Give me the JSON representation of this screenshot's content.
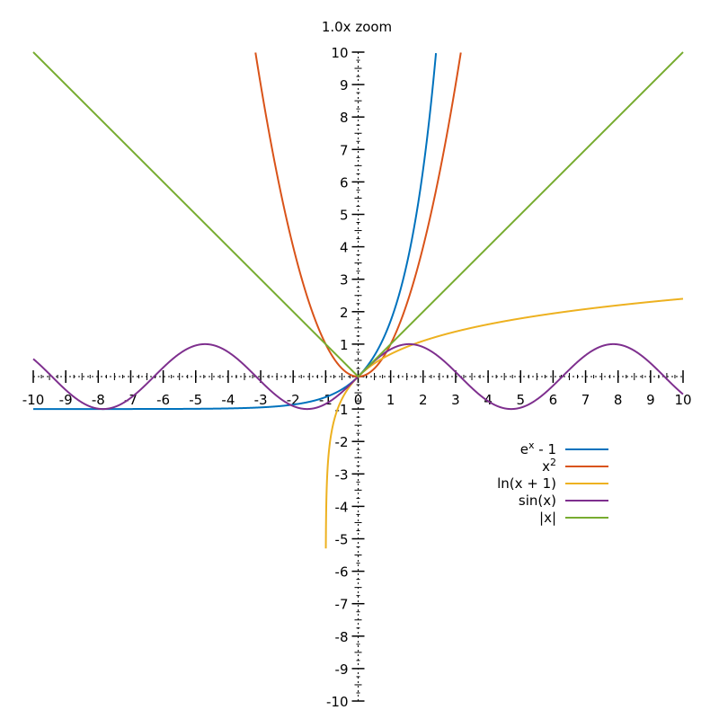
{
  "zoom_label": "1.0x zoom",
  "chart_data": {
    "type": "line",
    "title": "",
    "xlabel": "",
    "ylabel": "",
    "xlim": [
      -10,
      10
    ],
    "ylim": [
      -10,
      10
    ],
    "x_ticks": [
      "-10",
      "-9",
      "-8",
      "-7",
      "-6",
      "-5",
      "-4",
      "-3",
      "-2",
      "-1",
      "0",
      "1",
      "2",
      "3",
      "4",
      "5",
      "6",
      "7",
      "8",
      "9",
      "10"
    ],
    "y_ticks": [
      "-10",
      "-9",
      "-8",
      "-7",
      "-6",
      "-5",
      "-4",
      "-3",
      "-2",
      "-1",
      "0",
      "1",
      "2",
      "3",
      "4",
      "5",
      "6",
      "7",
      "8",
      "9",
      "10"
    ],
    "minor_ticks_per_unit": 4,
    "grid": false,
    "legend_position": "bottom-right",
    "series": [
      {
        "name_base": "e",
        "name_sup": "x",
        "name_tail": " - 1",
        "function": "exp_minus_1",
        "color": "#0072bd"
      },
      {
        "name_base": "x",
        "name_sup": "2",
        "name_tail": "",
        "function": "square",
        "color": "#d95319"
      },
      {
        "name_base": "ln(x + 1)",
        "name_sup": "",
        "name_tail": "",
        "function": "ln_x_plus_1",
        "color": "#edb120"
      },
      {
        "name_base": "sin(x)",
        "name_sup": "",
        "name_tail": "",
        "function": "sin",
        "color": "#7e2f8e"
      },
      {
        "name_base": "|x|",
        "name_sup": "",
        "name_tail": "",
        "function": "abs",
        "color": "#77ac30"
      }
    ]
  }
}
